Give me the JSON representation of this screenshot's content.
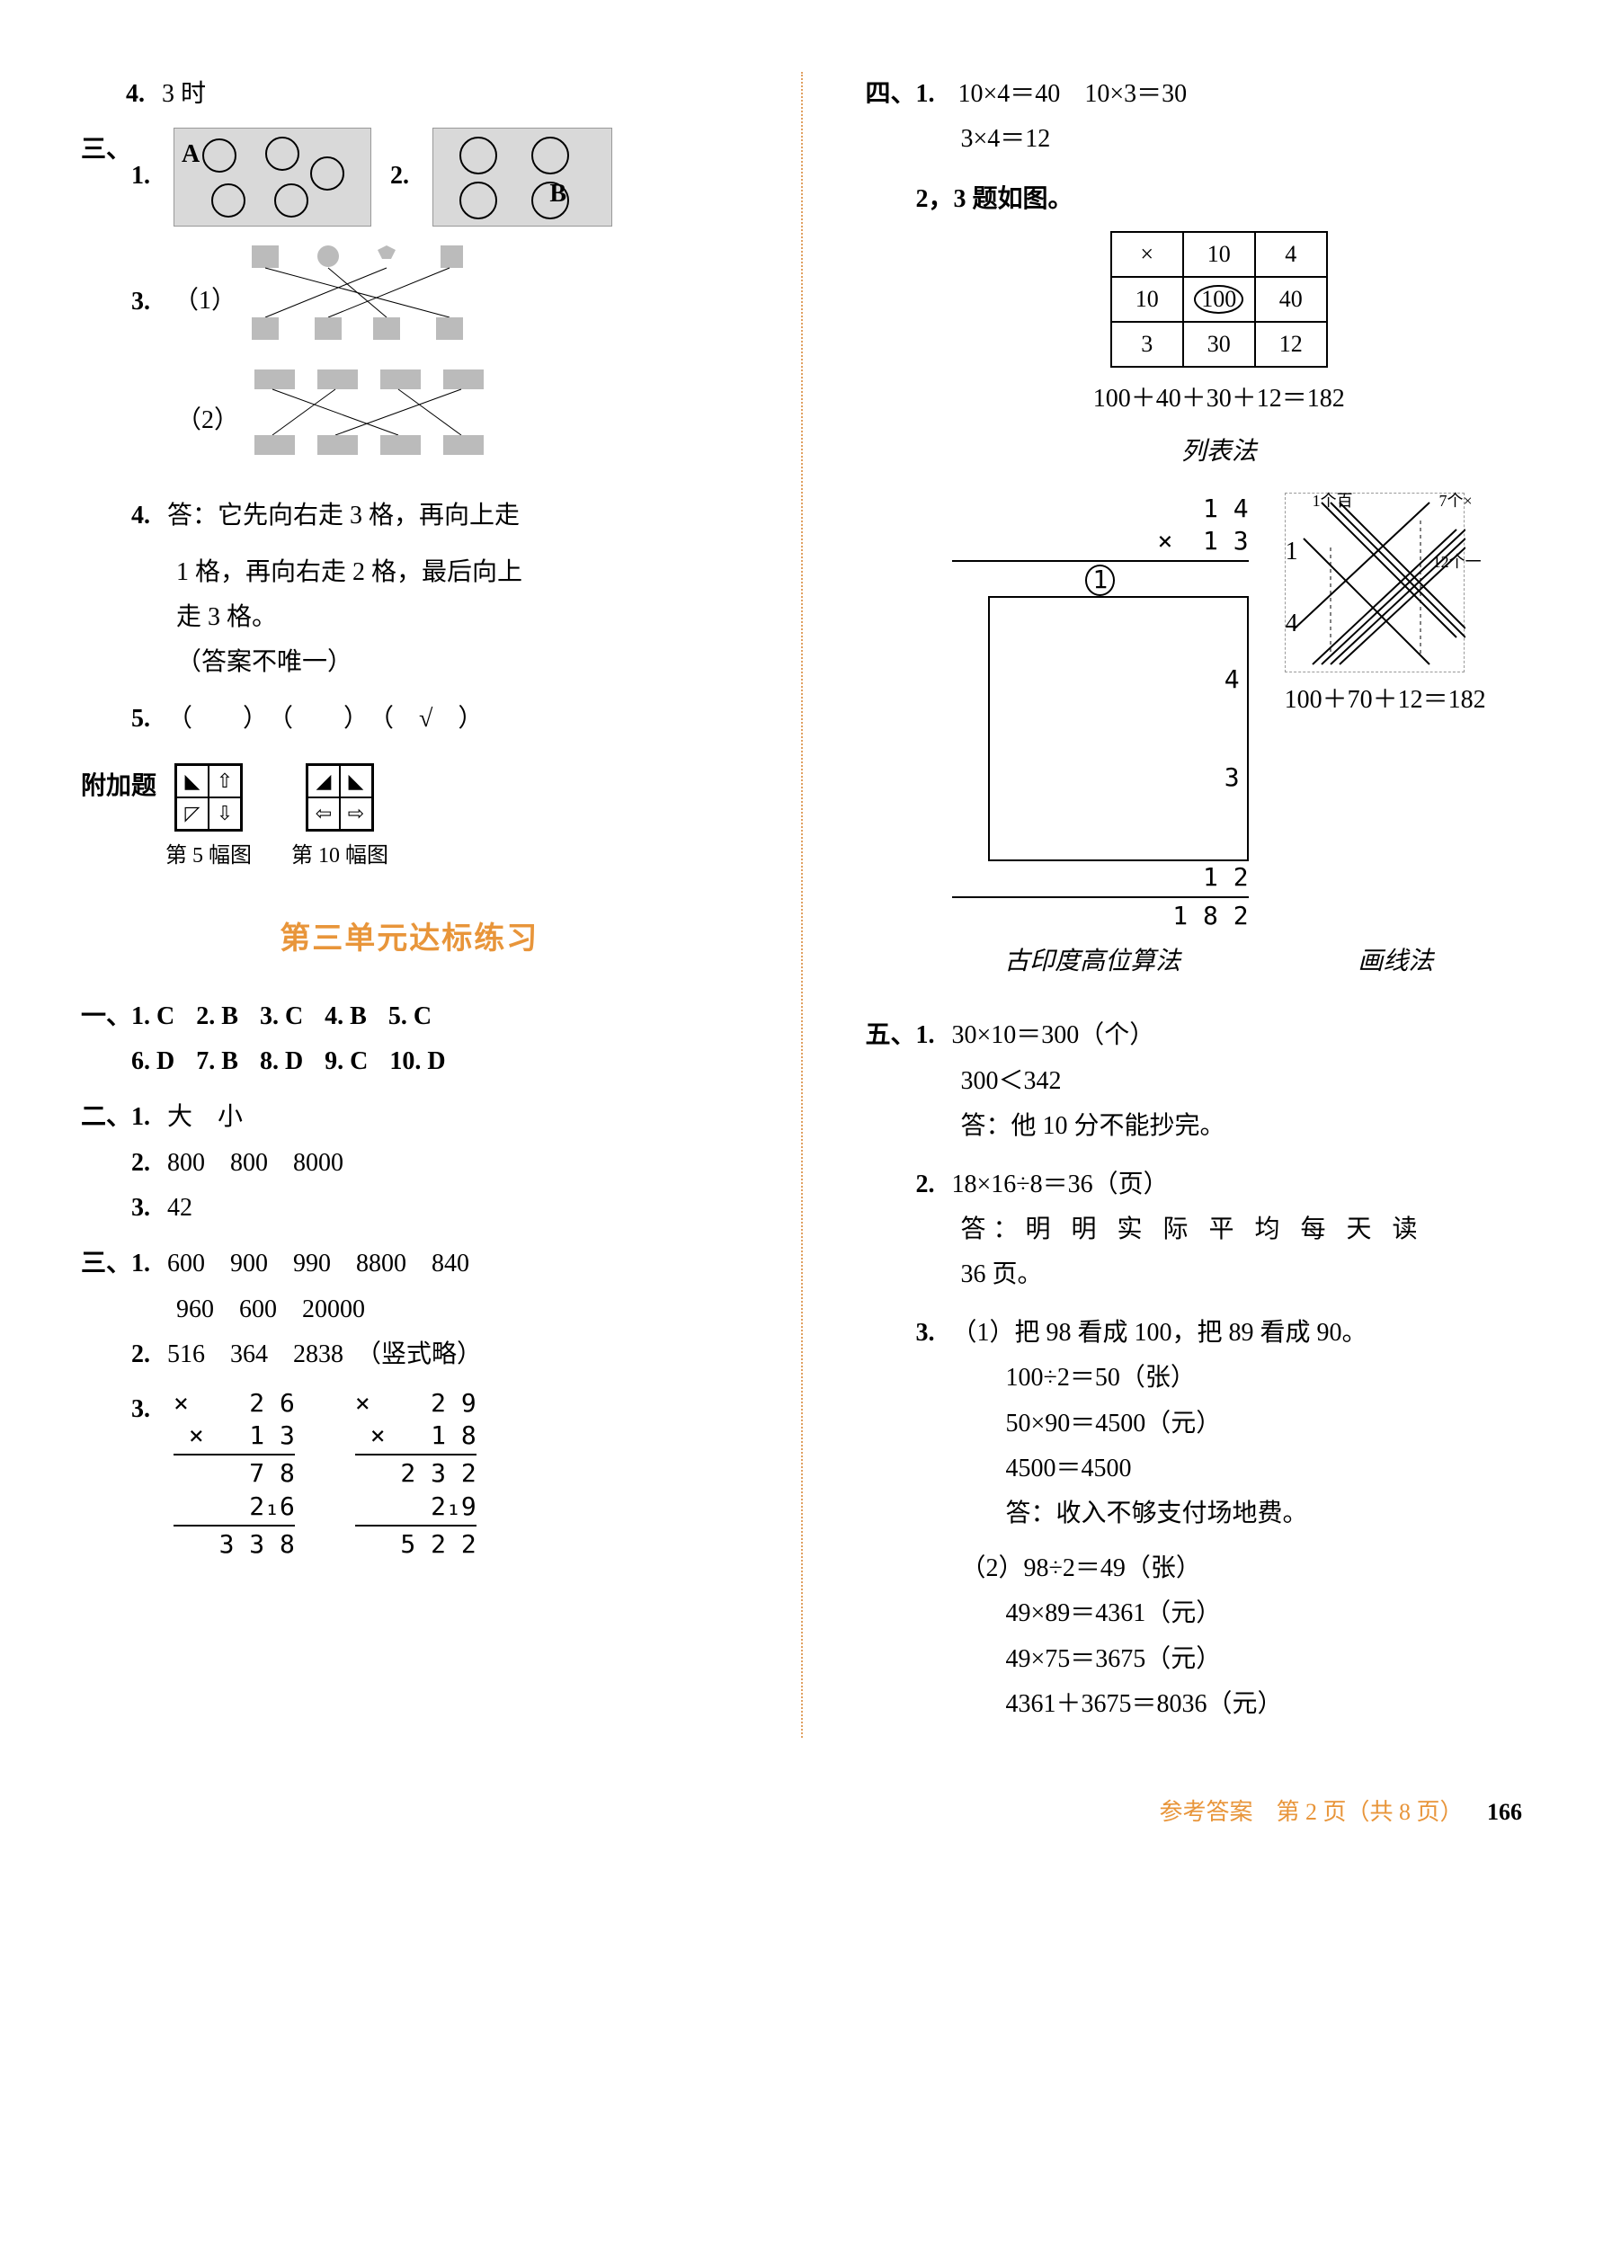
{
  "left": {
    "q4_top": "3 时",
    "s3": {
      "label": "三、",
      "q1": {
        "num": "1.",
        "imgA_label": "A",
        "imgB_label": "B"
      },
      "q2_num": "2.",
      "q3": {
        "num": "3.",
        "sub1": "（1）",
        "sub2": "（2）"
      },
      "q4": {
        "num": "4.",
        "line1": "答：它先向右走 3 格，再向上走",
        "line2": "1 格，再向右走 2 格，最后向上",
        "line3": "走 3 格。",
        "line4": "（答案不唯一）"
      },
      "q5": {
        "num": "5.",
        "text": "（　　）　（　　）　（　√　）"
      }
    },
    "appendix": {
      "label": "附加题",
      "fig5": "第 5 幅图",
      "fig10": "第 10 幅图"
    },
    "unit_title": "第三单元达标练习",
    "s1": {
      "label": "一、",
      "answers": [
        {
          "n": "1.",
          "v": "C"
        },
        {
          "n": "2.",
          "v": "B"
        },
        {
          "n": "3.",
          "v": "C"
        },
        {
          "n": "4.",
          "v": "B"
        },
        {
          "n": "5.",
          "v": "C"
        },
        {
          "n": "6.",
          "v": "D"
        },
        {
          "n": "7.",
          "v": "B"
        },
        {
          "n": "8.",
          "v": "D"
        },
        {
          "n": "9.",
          "v": "C"
        },
        {
          "n": "10.",
          "v": "D"
        }
      ]
    },
    "s2": {
      "label": "二、",
      "q1": {
        "num": "1.",
        "text": "大　小"
      },
      "q2": {
        "num": "2.",
        "text": "800　800　8000"
      },
      "q3": {
        "num": "3.",
        "text": "42"
      }
    },
    "s3b": {
      "label": "三、",
      "q1": {
        "num": "1.",
        "line1": "600　900　990　8800　840",
        "line2": "960　600　20000"
      },
      "q2": {
        "num": "2.",
        "text": "516　364　2838　（竖式略）"
      },
      "q3": {
        "num": "3.",
        "calc1": {
          "r1": "×    2 6",
          "r2": "×   1 3",
          "r3": "    7 8",
          "r4": "  2₁6",
          "r5": "  3 3 8"
        },
        "calc2": {
          "r1": "×    2 9",
          "r2": "×   1 8",
          "r3": "  2 3 2",
          "r4": "  2₁9",
          "r5": "  5 2 2"
        }
      }
    }
  },
  "right": {
    "s4": {
      "label": "四、",
      "q1": {
        "num": "1.",
        "e1": "10×4＝40",
        "e2": "10×3＝30",
        "e3": "3×4＝12"
      },
      "q23_label": "2，3 题如图。",
      "table": {
        "headers": [
          "×",
          "10",
          "4"
        ],
        "rows": [
          [
            "10",
            "100",
            "40"
          ],
          [
            "3",
            "30",
            "12"
          ]
        ],
        "circled_cell": "100"
      },
      "table_eq": "100＋40＋30＋12＝182",
      "method1": "列表法",
      "vert": {
        "r1": "   1 4",
        "r2": "×  1 3",
        "r3_circled": "1",
        "r4": "   4",
        "r5": "   3",
        "r6": " 1 2",
        "r7": " 1 8 2"
      },
      "line_eq": "100＋70＋12＝182",
      "method2": "古印度高位算法",
      "method3": "画线法",
      "line_labels": {
        "tl": "1",
        "tlx": "个百",
        "tr": "7",
        "trx": "个×",
        "r": "12",
        "rx": "个一",
        "l": "1",
        "b": "4"
      }
    },
    "s5": {
      "label": "五、",
      "q1": {
        "num": "1.",
        "l1": "30×10＝300（个）",
        "l2": "300＜342",
        "l3": "答：他 10 分不能抄完。"
      },
      "q2": {
        "num": "2.",
        "l1": "18×16÷8＝36（页）",
        "l2": "答：明 明 实 际 平 均 每 天 读",
        "l3": "36 页。"
      },
      "q3": {
        "num": "3.",
        "sub1_label": "（1）把 98 看成 100，把 89 看成 90。",
        "sub1_l1": "100÷2＝50（张）",
        "sub1_l2": "50×90＝4500（元）",
        "sub1_l3": "4500＝4500",
        "sub1_ans": "答：收入不够支付场地费。",
        "sub2_label": "（2）98÷2＝49（张）",
        "sub2_l1": "49×89＝4361（元）",
        "sub2_l2": "49×75＝3675（元）",
        "sub2_l3": "4361＋3675＝8036（元）"
      }
    }
  },
  "footer": {
    "text": "参考答案　第 2 页（共 8 页）",
    "page": "166"
  }
}
